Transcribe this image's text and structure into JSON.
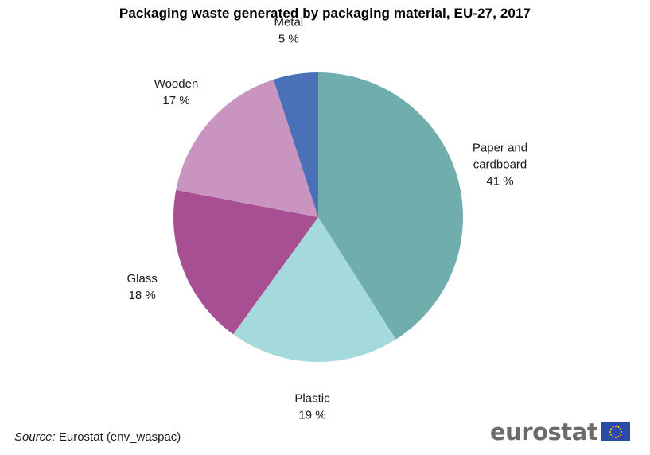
{
  "title": "Packaging waste generated by packaging material, EU-27, 2017",
  "source": {
    "prefix": "Source:",
    "text": "Eurostat (env_waspac)"
  },
  "brand": {
    "name": "eurostat",
    "flag_icon": "eu-flag-icon",
    "flag_color": "#2a4aa8",
    "star_color": "#f2c318"
  },
  "chart_data": {
    "type": "pie",
    "title": "Packaging waste generated by packaging material, EU-27, 2017",
    "start_angle_deg": 0,
    "direction": "clockwise",
    "slices": [
      {
        "label": [
          "Paper and",
          "cardboard"
        ],
        "value": 41,
        "value_label": "41 %",
        "color": "#70aead"
      },
      {
        "label": [
          "Plastic"
        ],
        "value": 19,
        "value_label": "19 %",
        "color": "#a4dadb"
      },
      {
        "label": [
          "Glass"
        ],
        "value": 18,
        "value_label": "18 %",
        "color": "#a84f93"
      },
      {
        "label": [
          "Wooden"
        ],
        "value": 17,
        "value_label": "17 %",
        "color": "#c994bf"
      },
      {
        "label": [
          "Metal"
        ],
        "value": 5,
        "value_label": "5 %",
        "color": "#4a70b8"
      }
    ]
  }
}
